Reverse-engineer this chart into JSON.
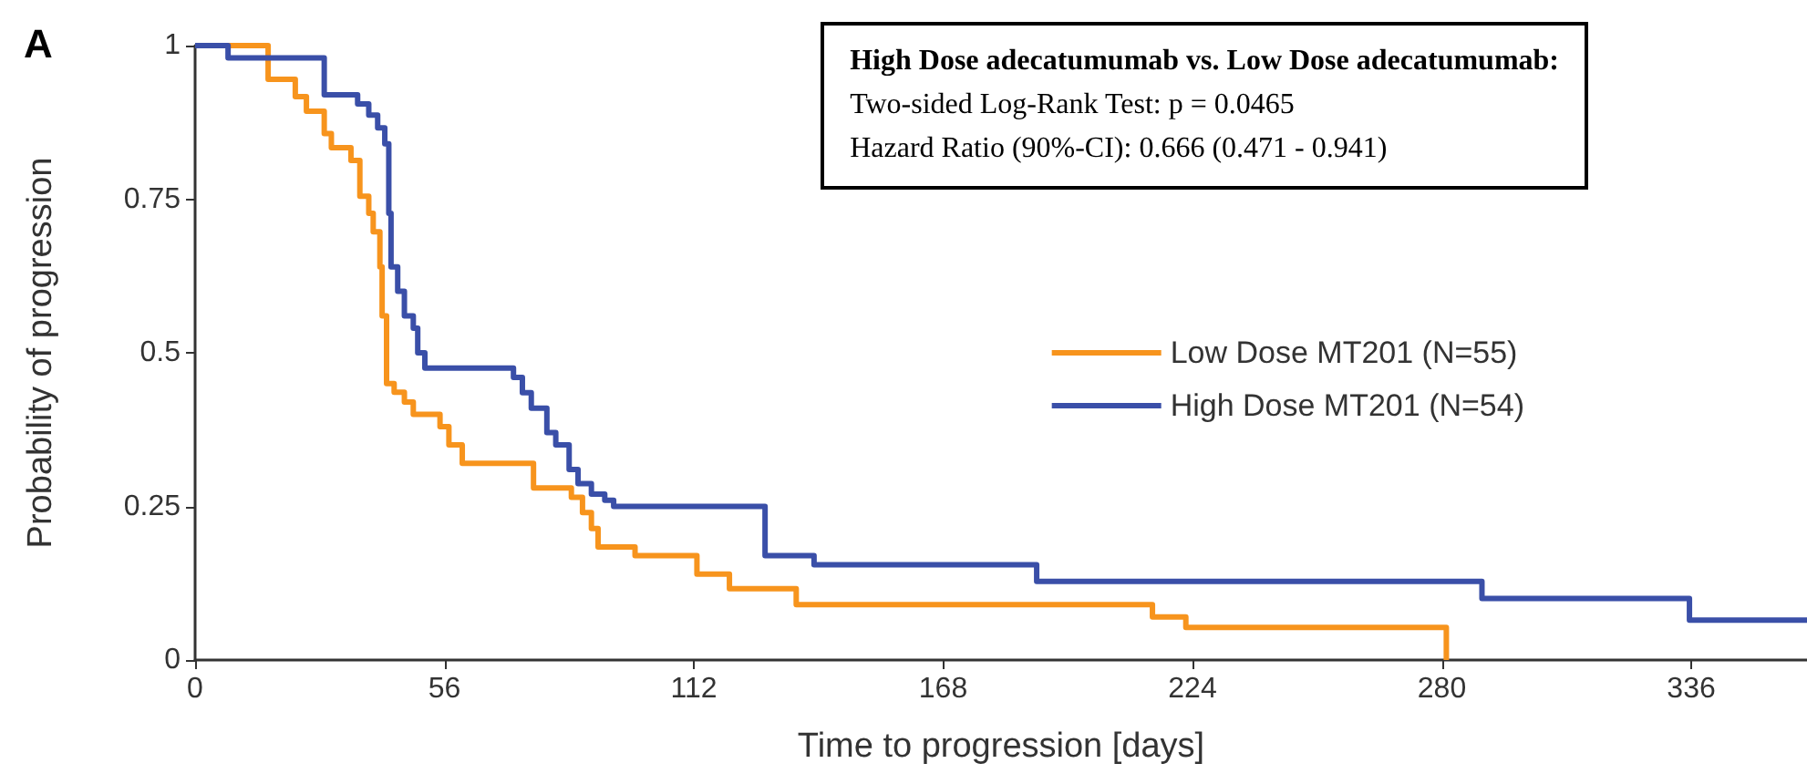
{
  "chart_data": {
    "type": "step",
    "title": "A",
    "xlabel": "Time to progression [days]",
    "ylabel": "Probability of progression",
    "annotations": [
      "High Dose adecatumumab vs. Low Dose adecatumumab:",
      "Two-sided Log-Rank Test: p = 0.0465",
      "Hazard Ratio (90%-CI): 0.666 (0.471 - 0.941)"
    ],
    "xlim": [
      0,
      362
    ],
    "xticks": [
      0,
      56,
      112,
      168,
      224,
      280,
      336
    ],
    "ylim": [
      0,
      1
    ],
    "yticks": [
      0,
      0.25,
      0.5,
      0.75,
      1
    ],
    "grid": false,
    "legend": "right",
    "marker": "none",
    "line_style": "solid",
    "series": [
      {
        "name": "Low Dose MT201 (N=55)",
        "color": "#f7941d",
        "x": [
          0,
          16.4,
          22.5,
          25,
          29,
          30.6,
          35,
          37,
          39,
          40,
          41.5,
          42,
          43,
          44.7,
          47,
          49,
          55,
          57,
          60,
          76,
          84.5,
          87,
          89,
          90.5,
          98.8,
          112.7,
          120,
          135,
          215,
          222.5,
          281
        ],
        "values": [
          1,
          0.945,
          0.917,
          0.893,
          0.857,
          0.834,
          0.813,
          0.755,
          0.727,
          0.697,
          0.64,
          0.56,
          0.45,
          0.436,
          0.42,
          0.4,
          0.38,
          0.35,
          0.32,
          0.28,
          0.265,
          0.24,
          0.214,
          0.184,
          0.17,
          0.14,
          0.116,
          0.09,
          0.07,
          0.053,
          0
        ]
      },
      {
        "name": "High Dose MT201 (N=54)",
        "color": "#3a4fa8",
        "x": [
          0,
          7.4,
          29,
          36.5,
          39,
          41,
          42.6,
          43.5,
          44,
          45.5,
          47,
          49,
          50,
          51.6,
          71.5,
          73.5,
          75.5,
          79,
          81,
          84,
          86,
          89,
          92,
          94,
          128,
          139,
          189,
          289,
          335.6,
          362
        ],
        "values": [
          1,
          0.98,
          0.92,
          0.905,
          0.887,
          0.866,
          0.84,
          0.727,
          0.64,
          0.6,
          0.56,
          0.54,
          0.5,
          0.475,
          0.46,
          0.435,
          0.41,
          0.37,
          0.35,
          0.31,
          0.287,
          0.27,
          0.26,
          0.25,
          0.17,
          0.155,
          0.128,
          0.1,
          0.065,
          0.065
        ]
      }
    ]
  }
}
